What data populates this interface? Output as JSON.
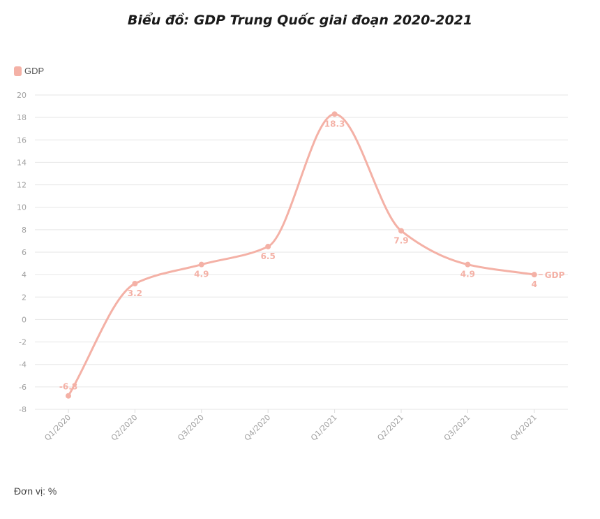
{
  "chart_data": {
    "type": "line",
    "title": "Biểu đồ: GDP Trung Quốc giai đoạn 2020-2021",
    "categories": [
      "Q1/2020",
      "Q2/2020",
      "Q3/2020",
      "Q4/2020",
      "Q1/2021",
      "Q2/2021",
      "Q3/2021",
      "Q4/2021"
    ],
    "series": [
      {
        "name": "GDP",
        "values": [
          -6.8,
          3.2,
          4.9,
          6.5,
          18.3,
          7.9,
          4.9,
          4
        ],
        "color": "#f4b1a6"
      }
    ],
    "ylim": [
      -8,
      20
    ],
    "yticks": [
      -8,
      -6,
      -4,
      -2,
      0,
      2,
      4,
      6,
      8,
      10,
      12,
      14,
      16,
      18,
      20
    ],
    "grid": true,
    "legend": "top-left",
    "smooth": true
  },
  "footer": {
    "unit_label": "Đơn vị: %"
  }
}
